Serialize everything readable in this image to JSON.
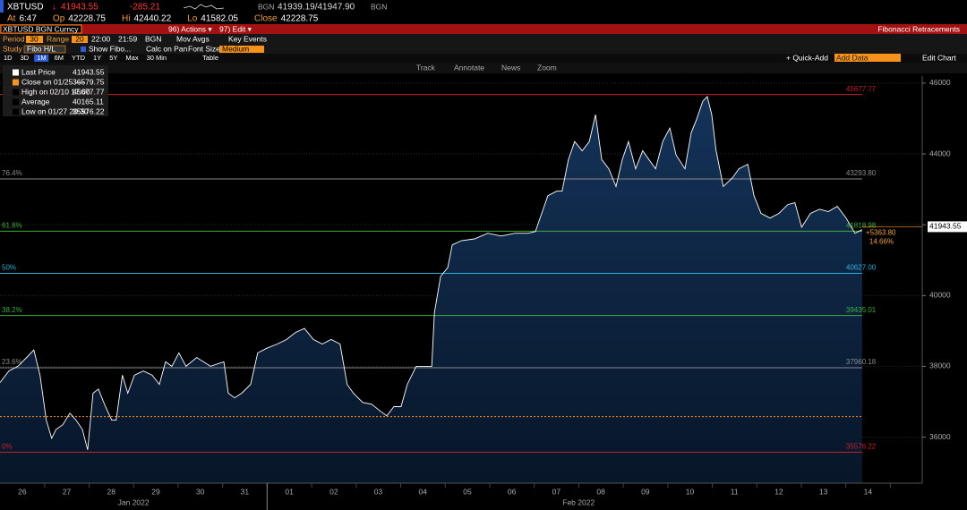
{
  "header": {
    "ticker": "XBTUSD",
    "arrow": "↓",
    "last": "41943.55",
    "change": "-285.21",
    "src1": "BGN",
    "bidask": "41939.19/41947.90",
    "src2": "BGN",
    "row2": [
      {
        "label": "At",
        "value": "6:47"
      },
      {
        "label": "Op",
        "value": "42228.75"
      },
      {
        "label": "Hi",
        "value": "42440.22"
      },
      {
        "label": "Lo",
        "value": "41582.05"
      },
      {
        "label": "Close",
        "value": "42228.75"
      }
    ]
  },
  "menu": {
    "security": "XBTUSD BGN Curncy",
    "actions": "96) Actions ▾",
    "edit": "97) Edit ▾",
    "title": "Fibonacci Retracements"
  },
  "settings": {
    "period_label": "Period",
    "period": "30",
    "range_label": "Range",
    "range": "20",
    "start": "22:00",
    "end": "21:59",
    "source": "BGN",
    "mov_avgs": "Mov Avgs",
    "key_events": "Key Events",
    "study_label": "Study",
    "study": "Fibo H/L",
    "show_fibo": "Show Fibo...",
    "calc_on_pan": "Calc on Pan",
    "font_size_label": "Font Size",
    "font_size": "Medium"
  },
  "periods": [
    "1D",
    "3D",
    "1M",
    "6M",
    "YTD",
    "1Y",
    "5Y",
    "Max",
    "30 Min",
    "Table"
  ],
  "toolbar": [
    "Track",
    "Annotate",
    "News",
    "Zoom"
  ],
  "right_tools": {
    "quick_add": "+ Quick-Add",
    "add_data": "Add Data",
    "edit_chart": "Edit Chart"
  },
  "chart_data": {
    "type": "area",
    "legend": [
      {
        "label": "Last Price",
        "value": "41943.55",
        "color": "#ffffff"
      },
      {
        "label": "Close on 01/25 ----",
        "value": "36579.75",
        "color": "#f7931a"
      },
      {
        "label": "High on 02/10 17:00",
        "value": "45677.77",
        "color": "#000000"
      },
      {
        "label": "Average",
        "value": "40165.11",
        "color": "#000000"
      },
      {
        "label": "Low on 01/27 20:30",
        "value": "35576.22",
        "color": "#000000"
      }
    ],
    "series": [
      {
        "color": "#ffffff",
        "x": [
          -0.5,
          -0.3,
          -0.1,
          0.1,
          0.26,
          0.4,
          0.54,
          0.66,
          0.76,
          0.91,
          1.07,
          1.21,
          1.35,
          1.47,
          1.59,
          1.71,
          1.87,
          2.01,
          2.11,
          2.25,
          2.37,
          2.52,
          2.72,
          2.92,
          3.08,
          3.22,
          3.36,
          3.52,
          3.68,
          3.92,
          4.23,
          4.53,
          4.63,
          4.77,
          4.93,
          5.13,
          5.29,
          5.49,
          5.73,
          5.94,
          6.14,
          6.34,
          6.54,
          6.74,
          6.94,
          7.14,
          7.3,
          7.44,
          7.65,
          7.85,
          8.05,
          8.19,
          8.35,
          8.51,
          8.65,
          8.85,
          9.05,
          9.2,
          9.26,
          9.4,
          9.56,
          9.66,
          9.86,
          10.16,
          10.46,
          10.76,
          11.07,
          11.37,
          11.53,
          11.67,
          11.81,
          12.01,
          12.13,
          12.27,
          12.41,
          12.58,
          12.74,
          12.88,
          13.02,
          13.18,
          13.34,
          13.48,
          13.62,
          13.78,
          13.94,
          14.08,
          14.23,
          14.39,
          14.55,
          14.69,
          14.89,
          15.03,
          15.15,
          15.29,
          15.39,
          15.49,
          15.59,
          15.75,
          15.96,
          16.1,
          16.3,
          16.44,
          16.6,
          16.8,
          17.0,
          17.2,
          17.36,
          17.51,
          17.71,
          17.91,
          18.11,
          18.31,
          18.51,
          18.71,
          18.87
        ],
        "values": [
          37540,
          37870,
          38000,
          38250,
          38460,
          37750,
          36480,
          35970,
          36220,
          36350,
          36680,
          36480,
          36220,
          35640,
          37240,
          37360,
          36860,
          36480,
          36480,
          37750,
          37240,
          37750,
          37870,
          37750,
          37490,
          38130,
          38000,
          38380,
          38000,
          38250,
          38000,
          38130,
          37240,
          37110,
          37240,
          37490,
          38380,
          38510,
          38630,
          38760,
          38960,
          39070,
          38760,
          38630,
          38760,
          38630,
          37490,
          37240,
          36980,
          36930,
          36730,
          36600,
          36860,
          36860,
          37490,
          38000,
          38000,
          38000,
          39520,
          40540,
          40790,
          41430,
          41550,
          41600,
          41760,
          41680,
          41760,
          41760,
          41810,
          42320,
          42820,
          42950,
          42950,
          43840,
          44350,
          44090,
          44350,
          45110,
          43840,
          43580,
          43080,
          43840,
          44350,
          43580,
          44090,
          43840,
          43580,
          44350,
          44730,
          43970,
          43580,
          44600,
          44980,
          45490,
          45620,
          45110,
          44090,
          43080,
          43330,
          43580,
          43710,
          42820,
          42320,
          42190,
          42320,
          42570,
          42620,
          41930,
          42320,
          42440,
          42370,
          42520,
          42190,
          41760,
          41860
        ]
      }
    ],
    "xlim": [
      -0.5,
      20.22
    ],
    "ylim": [
      34700,
      46200
    ],
    "yticks": [
      36000,
      38000,
      40000,
      42000,
      44000,
      46000
    ],
    "xticks": [
      {
        "value": 0,
        "label": "26"
      },
      {
        "value": 1,
        "label": "27"
      },
      {
        "value": 2,
        "label": "28"
      },
      {
        "value": 3,
        "label": "29"
      },
      {
        "value": 4,
        "label": "30"
      },
      {
        "value": 5,
        "label": "31"
      },
      {
        "value": 6,
        "label": "01"
      },
      {
        "value": 7,
        "label": "02"
      },
      {
        "value": 8,
        "label": "03"
      },
      {
        "value": 9,
        "label": "04"
      },
      {
        "value": 10,
        "label": "05"
      },
      {
        "value": 11,
        "label": "06"
      },
      {
        "value": 12,
        "label": "07"
      },
      {
        "value": 13,
        "label": "08"
      },
      {
        "value": 14,
        "label": "09"
      },
      {
        "value": 15,
        "label": "10"
      },
      {
        "value": 16,
        "label": "11"
      },
      {
        "value": 17,
        "label": "12"
      },
      {
        "value": 18,
        "label": "13"
      },
      {
        "value": 19,
        "label": "14"
      }
    ],
    "month_labels": [
      {
        "value": 2.5,
        "label": "Jan 2022"
      },
      {
        "value": 12.5,
        "label": "Feb 2022"
      }
    ],
    "fib_levels": [
      {
        "label": "100%",
        "value": 45677.77,
        "color": "#c8202a"
      },
      {
        "label": "76.4%",
        "value": 43293.8,
        "value_label": "43293.80",
        "color": "#8a8a8a"
      },
      {
        "label": "61.8%",
        "value": 41818.98,
        "color": "#3fae3f"
      },
      {
        "label": "50%",
        "value": 40627,
        "value_label": "40627.00",
        "color": "#2ab0d8"
      },
      {
        "label": "38.2%",
        "value": 39435.01,
        "color": "#3fae3f"
      },
      {
        "label": "23.6%",
        "value": 37960.18,
        "color": "#8a8a8a"
      },
      {
        "label": "0%",
        "value": 35576.22,
        "color": "#c8202a"
      }
    ],
    "close_line": {
      "value": 36579.75,
      "color": "#f7931a"
    },
    "last_price": {
      "value": 41943.55
    },
    "annotations": [
      "+5363.80",
      "14.66%"
    ]
  }
}
